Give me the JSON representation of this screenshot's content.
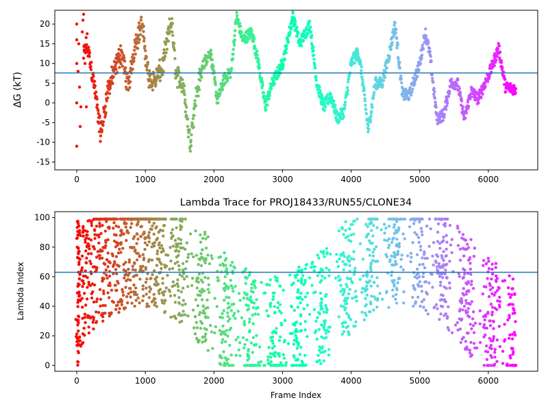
{
  "chart_data": [
    {
      "type": "scatter",
      "title": "",
      "xlabel": "",
      "ylabel": "ΔG (kT)",
      "xlim": [
        -320,
        6720
      ],
      "ylim": [
        -17,
        23.5
      ],
      "xticks": [
        0,
        1000,
        2000,
        3000,
        4000,
        5000,
        6000
      ],
      "yticks": [
        -15,
        -10,
        -5,
        0,
        5,
        10,
        15,
        20
      ],
      "hline": 7.6,
      "hline_color": "#1f77b4",
      "colormap": "rainbow",
      "color_order": "reverse-time",
      "grid": false,
      "legend": "none",
      "frames": 6400,
      "keypoints": [
        [
          0,
          5
        ],
        [
          150,
          15
        ],
        [
          250,
          5
        ],
        [
          350,
          -8
        ],
        [
          450,
          3
        ],
        [
          550,
          8
        ],
        [
          650,
          13
        ],
        [
          750,
          4
        ],
        [
          850,
          15
        ],
        [
          950,
          20
        ],
        [
          1050,
          6
        ],
        [
          1150,
          6
        ],
        [
          1250,
          9
        ],
        [
          1380,
          21
        ],
        [
          1450,
          7
        ],
        [
          1550,
          5
        ],
        [
          1650,
          -10
        ],
        [
          1750,
          3
        ],
        [
          1850,
          10
        ],
        [
          1950,
          13
        ],
        [
          2050,
          0.5
        ],
        [
          2150,
          6
        ],
        [
          2250,
          8
        ],
        [
          2330,
          22
        ],
        [
          2420,
          16
        ],
        [
          2550,
          18
        ],
        [
          2650,
          10
        ],
        [
          2750,
          -1
        ],
        [
          2850,
          5
        ],
        [
          3000,
          10
        ],
        [
          3150,
          22
        ],
        [
          3250,
          15
        ],
        [
          3400,
          20
        ],
        [
          3500,
          5
        ],
        [
          3600,
          -1
        ],
        [
          3700,
          2
        ],
        [
          3800,
          -4
        ],
        [
          3900,
          -2
        ],
        [
          4000,
          10
        ],
        [
          4100,
          13
        ],
        [
          4150,
          8
        ],
        [
          4250,
          -7
        ],
        [
          4350,
          5
        ],
        [
          4450,
          5
        ],
        [
          4550,
          12
        ],
        [
          4640,
          20
        ],
        [
          4750,
          2
        ],
        [
          4850,
          2
        ],
        [
          5000,
          10
        ],
        [
          5080,
          18
        ],
        [
          5150,
          12
        ],
        [
          5250,
          -4
        ],
        [
          5350,
          -3
        ],
        [
          5450,
          5
        ],
        [
          5550,
          5
        ],
        [
          5650,
          -4
        ],
        [
          5750,
          3
        ],
        [
          5850,
          1
        ],
        [
          5950,
          5
        ],
        [
          6050,
          9
        ],
        [
          6150,
          14
        ],
        [
          6250,
          4
        ],
        [
          6400,
          3.5
        ]
      ]
    },
    {
      "type": "scatter",
      "title": "Lambda Trace for PROJ18433/RUN55/CLONE34",
      "xlabel": "Frame Index",
      "ylabel": "Lambda Index",
      "xlim": [
        -320,
        6720
      ],
      "ylim": [
        -4,
        104
      ],
      "xticks": [
        0,
        1000,
        2000,
        3000,
        4000,
        5000,
        6000
      ],
      "yticks": [
        0,
        20,
        40,
        60,
        80,
        100
      ],
      "hline": 63,
      "hline_color": "#1f77b4",
      "colormap": "rainbow",
      "color_order": "reverse-time",
      "grid": false,
      "legend": "none",
      "frames": 6400,
      "value_range": [
        0,
        99
      ],
      "column_period_frames": 350
    }
  ]
}
